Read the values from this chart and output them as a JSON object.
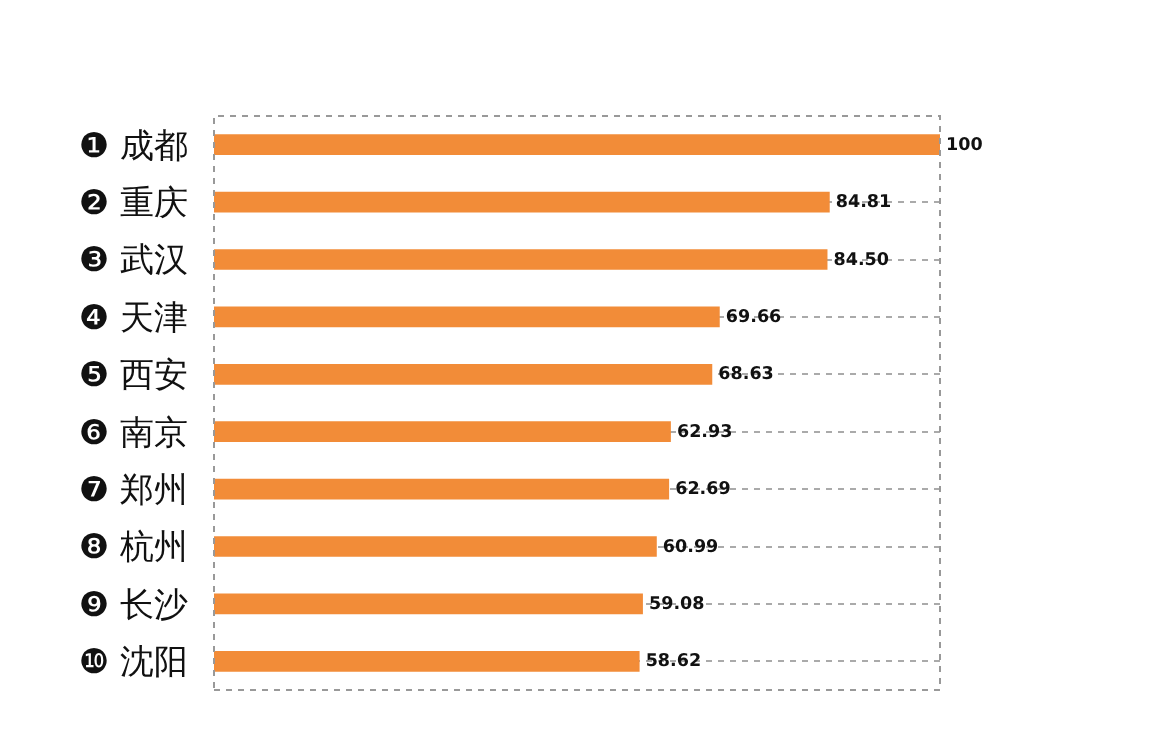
{
  "chart_data": {
    "type": "bar",
    "orientation": "horizontal",
    "categories": [
      "❶ 成都",
      "❷ 重庆",
      "❸ 武汉",
      "❹ 天津",
      "❺ 西安",
      "❻ 南京",
      "❼ 郑州",
      "❽ 杭州",
      "❾ 长沙",
      "❿ 沈阳"
    ],
    "values": [
      100,
      84.81,
      84.5,
      69.66,
      68.63,
      62.93,
      62.69,
      60.99,
      59.08,
      58.62
    ],
    "value_labels": [
      "100",
      "84.81",
      "84.50",
      "69.66",
      "68.63",
      "62.93",
      "62.69",
      "60.99",
      "59.08",
      "58.62"
    ],
    "color": "#f28c38",
    "xlim": [
      0,
      100
    ],
    "grid": "y",
    "tick_labels": "y"
  }
}
